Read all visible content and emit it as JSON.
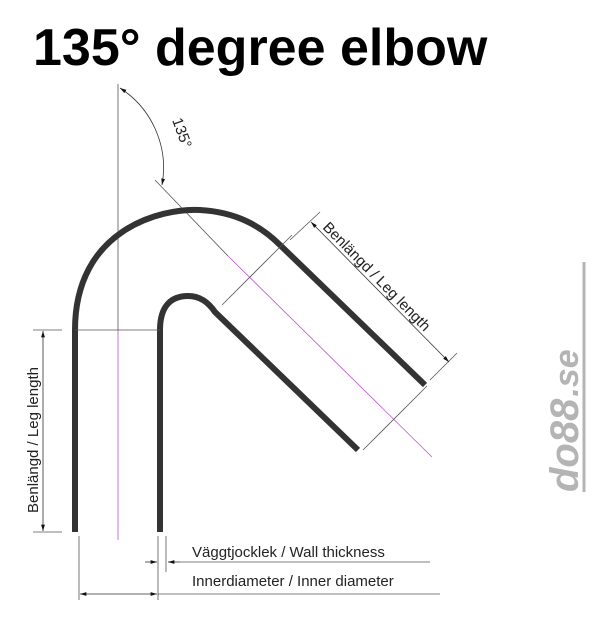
{
  "title": "135° degree elbow",
  "angle_label": "135°",
  "labels": {
    "leg_length_diagonal": "Benlängd / Leg length",
    "leg_length_vertical": "Benlängd / Leg length",
    "wall_thickness": "Väggtjocklek / Wall thickness",
    "inner_diameter": "Innerdiameter / Inner diameter"
  },
  "logo": {
    "text_main": "do88",
    "text_suffix": ".se"
  },
  "colors": {
    "pipe": "#333333",
    "centerline": "#c050d0",
    "dimension": "#555555",
    "logo": "#b4b4b4"
  }
}
